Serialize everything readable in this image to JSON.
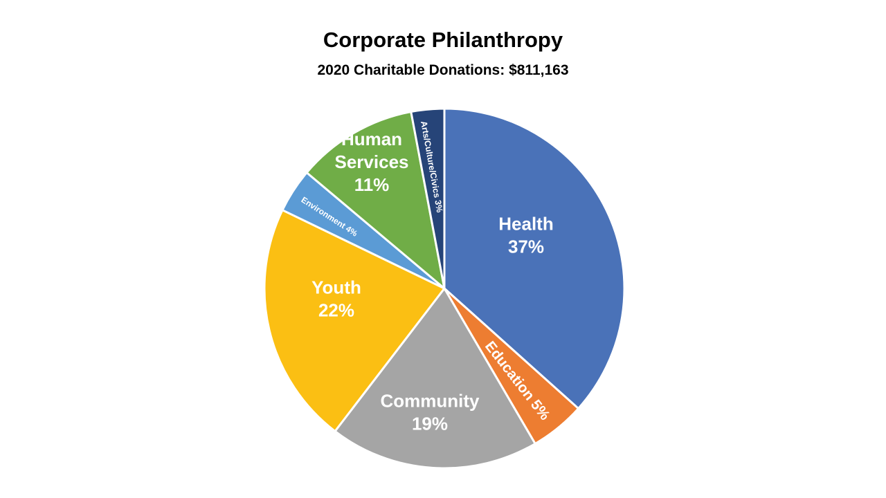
{
  "chart_data": {
    "type": "pie",
    "title": "Corporate Philanthropy",
    "subtitle": "2020 Charitable Donations: $811,163",
    "slices": [
      {
        "name": "Health",
        "label": "Health",
        "value_label": "37%",
        "value": 37,
        "color": "#4a72b8"
      },
      {
        "name": "Education",
        "label": "Education 5%",
        "value_label": "",
        "value": 5,
        "color": "#ed7d31"
      },
      {
        "name": "Community",
        "label": "Community",
        "value_label": "19%",
        "value": 19,
        "color": "#a5a5a5"
      },
      {
        "name": "Youth",
        "label": "Youth",
        "value_label": "22%",
        "value": 22,
        "color": "#fbbf13"
      },
      {
        "name": "Environment",
        "label": "Environment 4%",
        "value_label": "",
        "value": 4,
        "color": "#5b9bd5"
      },
      {
        "name": "Human Services",
        "label": "Human Services",
        "value_label": "11%",
        "value": 11,
        "color": "#70ad47"
      },
      {
        "name": "Arts/Culture/Civics",
        "label": "Arts/Culture/Civics 3%",
        "value_label": "",
        "value": 3,
        "color": "#264478"
      }
    ]
  }
}
